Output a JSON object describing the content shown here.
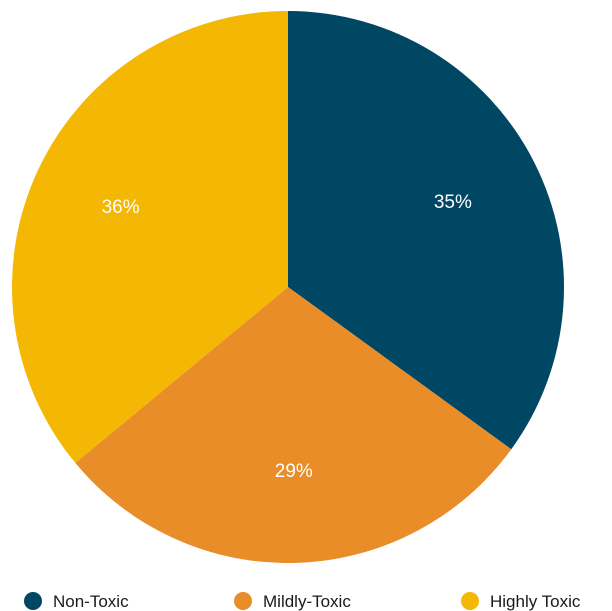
{
  "chart_data": {
    "type": "pie",
    "title": "",
    "start_angle_deg": 0,
    "direction": "clockwise",
    "legend_position": "bottom",
    "slices": [
      {
        "label": "Non-Toxic",
        "value": 35,
        "display": "35%",
        "color": "#004764"
      },
      {
        "label": "Mildly-Toxic",
        "value": 29,
        "display": "29%",
        "color": "#e88d28"
      },
      {
        "label": "Highly Toxic",
        "value": 36,
        "display": "36%",
        "color": "#f4b704"
      }
    ]
  }
}
